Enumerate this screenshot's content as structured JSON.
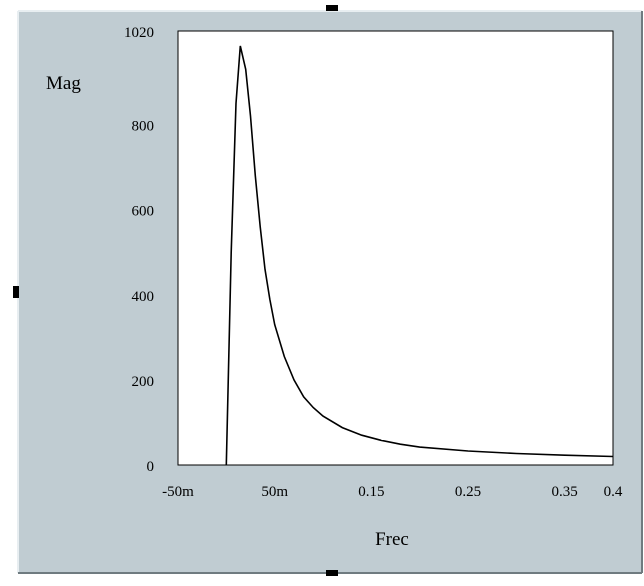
{
  "chart_data": {
    "type": "line",
    "title": "",
    "xlabel": "Frec",
    "ylabel": "Mag",
    "xlim": [
      -0.05,
      0.4
    ],
    "ylim": [
      0,
      1020
    ],
    "x_ticks": [
      {
        "value": -0.05,
        "label": "-50m"
      },
      {
        "value": 0.05,
        "label": "50m"
      },
      {
        "value": 0.15,
        "label": "0.15"
      },
      {
        "value": 0.25,
        "label": "0.25"
      },
      {
        "value": 0.35,
        "label": "0.35"
      },
      {
        "value": 0.4,
        "label": "0.4"
      }
    ],
    "y_ticks": [
      {
        "value": 0,
        "label": "0"
      },
      {
        "value": 200,
        "label": "200"
      },
      {
        "value": 400,
        "label": "400"
      },
      {
        "value": 600,
        "label": "600"
      },
      {
        "value": 800,
        "label": "800"
      },
      {
        "value": 1020,
        "label": "1020"
      }
    ],
    "grid": false,
    "series": [
      {
        "name": "",
        "x": [
          0.0,
          0.005,
          0.01,
          0.0145,
          0.02,
          0.025,
          0.03,
          0.035,
          0.04,
          0.045,
          0.05,
          0.06,
          0.07,
          0.08,
          0.09,
          0.1,
          0.12,
          0.14,
          0.16,
          0.18,
          0.2,
          0.25,
          0.3,
          0.35,
          0.4
        ],
        "y": [
          0,
          500,
          850,
          985,
          930,
          820,
          680,
          560,
          460,
          390,
          330,
          255,
          200,
          160,
          135,
          115,
          88,
          70,
          58,
          49,
          42,
          33,
          27,
          23,
          20
        ]
      }
    ]
  }
}
